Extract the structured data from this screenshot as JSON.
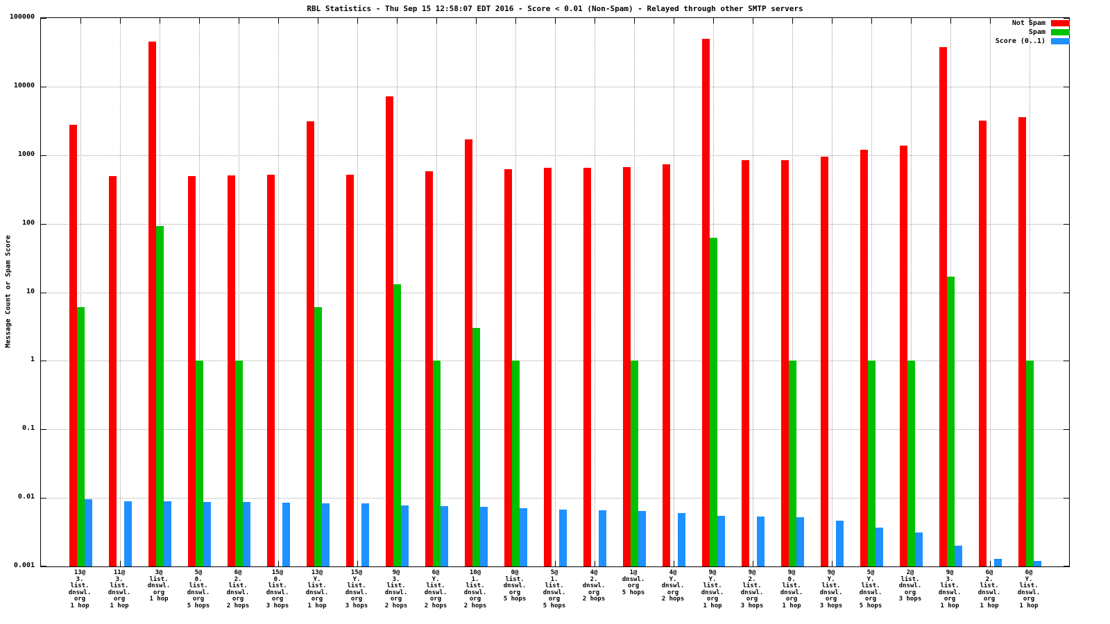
{
  "title": "RBL Statistics - Thu Sep 15 12:58:07 EDT 2016 - Score < 0.01 (Non-Spam) - Relayed through other SMTP servers",
  "ylabel": "Message Count or Spam Score",
  "chart_data": {
    "type": "bar",
    "scale": "log",
    "ylim": [
      0.001,
      100000
    ],
    "grid": true,
    "legend_position": "top-right",
    "ytick_labels": [
      "100000",
      "10000",
      "1000",
      "100",
      "10",
      "1",
      "0.1",
      "0.01",
      "0.001"
    ],
    "categories": [
      [
        "13@",
        "3.",
        "list.",
        "dnswl.",
        "org",
        "1 hop"
      ],
      [
        "11@",
        "3.",
        "list.",
        "dnswl.",
        "org",
        "1 hop"
      ],
      [
        "3@",
        "list.",
        "dnswl.",
        "org",
        "1 hop"
      ],
      [
        "5@",
        "0.",
        "list.",
        "dnswl.",
        "org",
        "5 hops"
      ],
      [
        "6@",
        "2.",
        "list.",
        "dnswl.",
        "org",
        "2 hops"
      ],
      [
        "15@",
        "0.",
        "list.",
        "dnswl.",
        "org",
        "3 hops"
      ],
      [
        "13@",
        "Y.",
        "list.",
        "dnswl.",
        "org",
        "1 hop"
      ],
      [
        "15@",
        "Y.",
        "list.",
        "dnswl.",
        "org",
        "3 hops"
      ],
      [
        "9@",
        "3.",
        "list.",
        "dnswl.",
        "org",
        "2 hops"
      ],
      [
        "6@",
        "Y.",
        "list.",
        "dnswl.",
        "org",
        "2 hops"
      ],
      [
        "10@",
        "1.",
        "list.",
        "dnswl.",
        "org",
        "2 hops"
      ],
      [
        "0@",
        "list.",
        "dnswl.",
        "org",
        "5 hops"
      ],
      [
        "5@",
        "1.",
        "list.",
        "dnswl.",
        "org",
        "5 hops"
      ],
      [
        "4@",
        "2.",
        "dnswl.",
        "org",
        "2 hops"
      ],
      [
        "1@",
        "dnswl.",
        "org",
        "5 hops"
      ],
      [
        "4@",
        "Y.",
        "dnswl.",
        "org",
        "2 hops"
      ],
      [
        "9@",
        "Y.",
        "list.",
        "dnswl.",
        "org",
        "1 hop"
      ],
      [
        "9@",
        "2.",
        "list.",
        "dnswl.",
        "org",
        "3 hops"
      ],
      [
        "9@",
        "0.",
        "list.",
        "dnswl.",
        "org",
        "1 hop"
      ],
      [
        "9@",
        "Y.",
        "list.",
        "dnswl.",
        "org",
        "3 hops"
      ],
      [
        "5@",
        "Y.",
        "list.",
        "dnswl.",
        "org",
        "5 hops"
      ],
      [
        "2@",
        "list.",
        "dnswl.",
        "org",
        "3 hops"
      ],
      [
        "9@",
        "3.",
        "list.",
        "dnswl.",
        "org",
        "1 hop"
      ],
      [
        "6@",
        "2.",
        "list.",
        "dnswl.",
        "org",
        "1 hop"
      ],
      [
        "6@",
        "Y.",
        "list.",
        "dnswl.",
        "org",
        "1 hop"
      ]
    ],
    "series": [
      {
        "name": "Not Spam",
        "key": "not-spam",
        "color": "#ff0000",
        "values": [
          2800,
          500,
          45000,
          500,
          510,
          520,
          3100,
          520,
          7200,
          580,
          1700,
          620,
          650,
          660,
          670,
          730,
          50000,
          840,
          840,
          950,
          1200,
          1380,
          38000,
          3200,
          3600
        ]
      },
      {
        "name": "Spam",
        "key": "spam",
        "color": "#00c000",
        "values": [
          6,
          null,
          92,
          1,
          1,
          null,
          6,
          null,
          13,
          1,
          3,
          1,
          null,
          null,
          1,
          null,
          62,
          null,
          1,
          null,
          1,
          1,
          17,
          null,
          1
        ]
      },
      {
        "name": "Score (0..1)",
        "key": "score",
        "color": "#1e90ff",
        "values": [
          0.0095,
          0.009,
          0.0089,
          0.0088,
          0.0087,
          0.0086,
          0.0084,
          0.0083,
          0.0078,
          0.0076,
          0.0074,
          0.007,
          0.0068,
          0.0066,
          0.0064,
          0.006,
          0.0055,
          0.0053,
          0.0052,
          0.0046,
          0.0037,
          0.0031,
          0.002,
          0.0013,
          0.0012
        ]
      }
    ]
  }
}
